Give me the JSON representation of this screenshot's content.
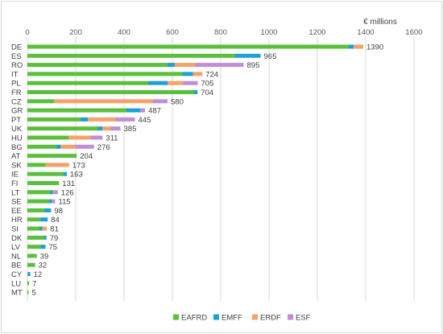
{
  "chart_data": {
    "type": "bar",
    "orientation": "horizontal",
    "stacked": true,
    "unit_label": "€ millions",
    "xlim": [
      0,
      1600
    ],
    "x_ticks": [
      0,
      200,
      400,
      600,
      800,
      1000,
      1200,
      1400,
      1600
    ],
    "x_tick_labels": [
      "0",
      "200",
      "400",
      "600",
      "800",
      "1000",
      "1200",
      "1400",
      "1600"
    ],
    "grid": true,
    "legend_position": "bottom",
    "categories": [
      "DE",
      "ES",
      "RO",
      "IT",
      "PL",
      "FR",
      "CZ",
      "GR",
      "PT",
      "UK",
      "HU",
      "BG",
      "AT",
      "SK",
      "IE",
      "FI",
      "LT",
      "SE",
      "EE",
      "HR",
      "SI",
      "DK",
      "LV",
      "NL",
      "BE",
      "CY",
      "LU",
      "MT"
    ],
    "totals": [
      1390,
      965,
      895,
      724,
      705,
      704,
      580,
      487,
      445,
      385,
      311,
      276,
      204,
      173,
      163,
      131,
      126,
      115,
      98,
      84,
      81,
      79,
      75,
      39,
      32,
      12,
      7,
      5
    ],
    "series": [
      {
        "name": "EAFRD",
        "color": "#5bbf3e",
        "values": [
          1330,
          860,
          580,
          640,
          500,
          690,
          110,
          410,
          220,
          290,
          170,
          120,
          204,
          75,
          150,
          131,
          95,
          90,
          70,
          55,
          50,
          70,
          55,
          39,
          32,
          3,
          7,
          5
        ]
      },
      {
        "name": "EMFF",
        "color": "#1ba1d6",
        "values": [
          20,
          105,
          30,
          45,
          80,
          14,
          0,
          57,
          30,
          20,
          0,
          18,
          0,
          0,
          13,
          0,
          10,
          10,
          28,
          29,
          12,
          9,
          20,
          0,
          0,
          9,
          0,
          0
        ]
      },
      {
        "name": "ERDF",
        "color": "#f4a26b",
        "values": [
          40,
          0,
          85,
          39,
          65,
          0,
          410,
          0,
          115,
          35,
          91,
          60,
          0,
          98,
          0,
          0,
          5,
          0,
          0,
          0,
          19,
          0,
          0,
          0,
          0,
          0,
          0,
          0
        ]
      },
      {
        "name": "ESF",
        "color": "#c08ed4",
        "values": [
          0,
          0,
          200,
          0,
          60,
          0,
          60,
          20,
          80,
          40,
          50,
          78,
          0,
          0,
          0,
          0,
          16,
          15,
          0,
          0,
          0,
          0,
          0,
          0,
          0,
          0,
          0,
          0
        ]
      }
    ]
  }
}
